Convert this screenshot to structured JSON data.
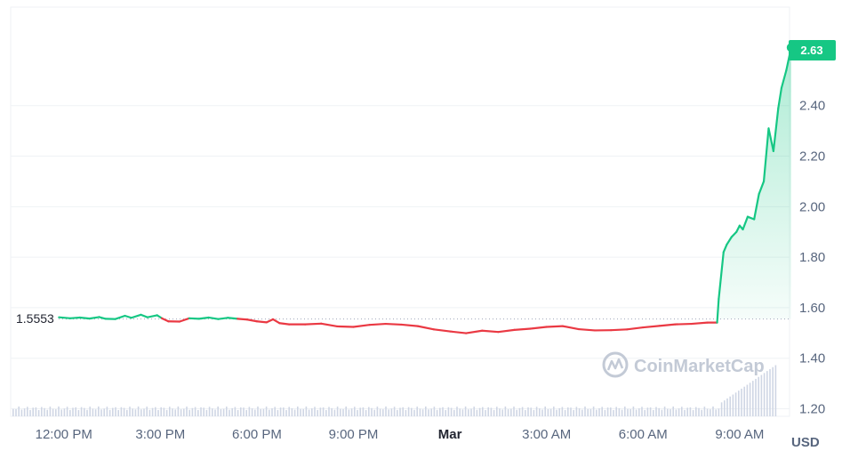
{
  "chart_data": {
    "type": "line",
    "currency_label": "USD",
    "reference_price": "1.5553",
    "current_price": "2.63",
    "watermark": "CoinMarketCap",
    "ylim": [
      1.17,
      2.79
    ],
    "y_ticks": [
      "1.20",
      "1.40",
      "1.60",
      "1.80",
      "2.00",
      "2.20",
      "2.40"
    ],
    "x_ticks": [
      "12:00 PM",
      "3:00 PM",
      "6:00 PM",
      "9:00 PM",
      "Mar",
      "3:00 AM",
      "6:00 AM",
      "9:00 AM"
    ],
    "x_tick_hours": [
      12,
      15,
      18,
      21,
      24,
      27,
      30,
      33
    ],
    "x_range_hours": [
      10.35,
      34.55
    ],
    "grid": true,
    "colors": {
      "up": "#16c784",
      "down": "#ea3943",
      "axis_text": "#58667e",
      "grid": "#eff2f5"
    },
    "series": [
      {
        "hours": [
          11.85,
          12.2,
          12.5,
          12.8,
          13.1,
          13.3,
          13.6,
          13.9,
          14.1,
          14.4,
          14.6,
          14.9,
          15.05,
          15.25,
          15.6,
          15.9,
          16.2,
          16.5,
          16.8,
          17.1,
          17.4,
          17.7,
          18.0,
          18.3,
          18.5,
          18.7,
          19.0,
          19.5,
          20.0,
          20.5,
          21.0,
          21.5,
          22.0,
          22.5,
          23.0,
          23.5,
          24.0,
          24.5,
          25.0,
          25.5,
          26.0,
          26.5,
          27.0,
          27.5,
          28.0,
          28.5,
          29.0,
          29.5,
          30.0,
          30.5,
          31.0,
          31.5,
          32.0,
          32.3,
          32.35,
          32.5,
          32.6,
          32.75,
          32.9,
          33.0,
          33.1,
          33.25,
          33.45,
          33.6,
          33.75,
          33.9,
          34.05,
          34.2,
          34.3,
          34.45,
          34.6
        ],
        "values": [
          1.562,
          1.558,
          1.561,
          1.557,
          1.563,
          1.556,
          1.555,
          1.568,
          1.56,
          1.572,
          1.562,
          1.57,
          1.558,
          1.546,
          1.545,
          1.558,
          1.556,
          1.561,
          1.555,
          1.56,
          1.556,
          1.553,
          1.546,
          1.542,
          1.554,
          1.539,
          1.534,
          1.534,
          1.537,
          1.526,
          1.524,
          1.532,
          1.536,
          1.533,
          1.527,
          1.514,
          1.506,
          1.499,
          1.509,
          1.504,
          1.512,
          1.517,
          1.524,
          1.527,
          1.515,
          1.51,
          1.511,
          1.514,
          1.522,
          1.528,
          1.534,
          1.536,
          1.541,
          1.541,
          1.635,
          1.82,
          1.85,
          1.88,
          1.9,
          1.925,
          1.91,
          1.96,
          1.95,
          2.05,
          2.1,
          2.31,
          2.22,
          2.39,
          2.47,
          2.54,
          2.63
        ]
      }
    ]
  }
}
